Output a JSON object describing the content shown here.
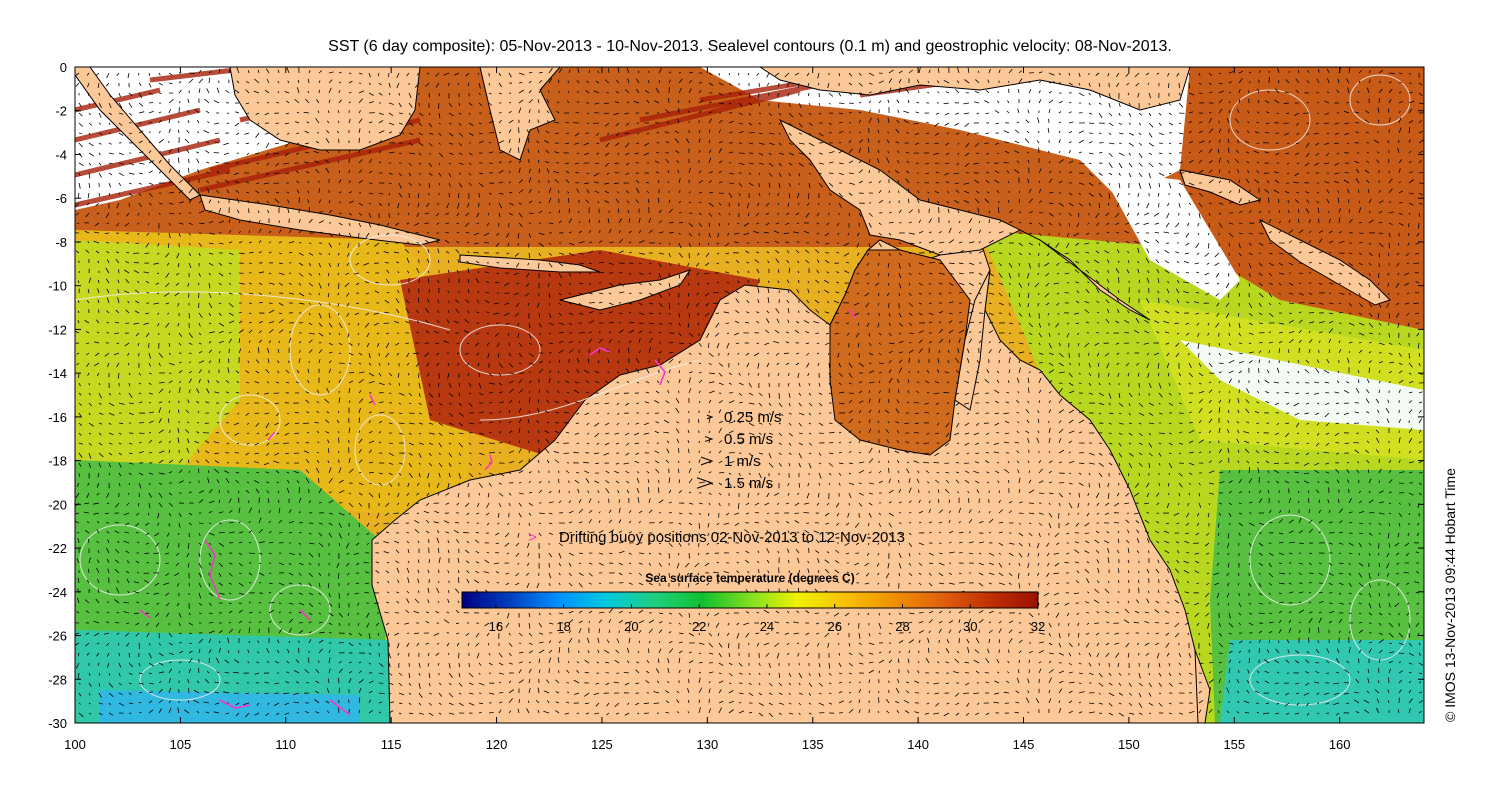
{
  "title": "SST (6 day composite): 05-Nov-2013 - 10-Nov-2013. Sealevel contours (0.1 m) and geostrophic velocity: 08-Nov-2013.",
  "credit": "© IMOS 13-Nov-2013 09:44 Hobart Time",
  "axes": {
    "lon_ticks": [
      "100",
      "105",
      "110",
      "115",
      "120",
      "125",
      "130",
      "135",
      "140",
      "145",
      "150",
      "155",
      "160"
    ],
    "lat_ticks": [
      "0",
      "-2",
      "-4",
      "-6",
      "-8",
      "-10",
      "-12",
      "-14",
      "-16",
      "-18",
      "-20",
      "-22",
      "-24",
      "-26",
      "-28",
      "-30"
    ],
    "lon_range": [
      100,
      164
    ],
    "lat_range": [
      -30,
      0
    ]
  },
  "velocity_legend": [
    {
      "label": "0.25 m/s",
      "speed": 0.25
    },
    {
      "label": "0.5 m/s",
      "speed": 0.5
    },
    {
      "label": "1 m/s",
      "speed": 1
    },
    {
      "label": "1.5 m/s",
      "speed": 1.5
    }
  ],
  "buoy_legend": {
    "symbol": ">",
    "label": "Drifting buoy positions 02-Nov-2013 to 12-Nov-2013",
    "color": "#ff33cc"
  },
  "colorbar": {
    "title": "Sea surface temperature (degrees C)",
    "ticks": [
      "16",
      "18",
      "20",
      "22",
      "24",
      "26",
      "28",
      "30",
      "32"
    ],
    "range": [
      15,
      32
    ],
    "colors": [
      "#000080",
      "#0040c0",
      "#0090ff",
      "#00c8e0",
      "#20d080",
      "#10c030",
      "#80e020",
      "#f0f000",
      "#f8c000",
      "#f09000",
      "#e06010",
      "#c03000",
      "#9a1000"
    ]
  },
  "colors": {
    "land": "#fcc898",
    "warm": "#c8501a",
    "hot": "#a82a08",
    "mid": "#e88a20",
    "yellow": "#e8e020",
    "green": "#60c838",
    "cyan": "#30c8b0",
    "contour": "#f0f0f0"
  }
}
